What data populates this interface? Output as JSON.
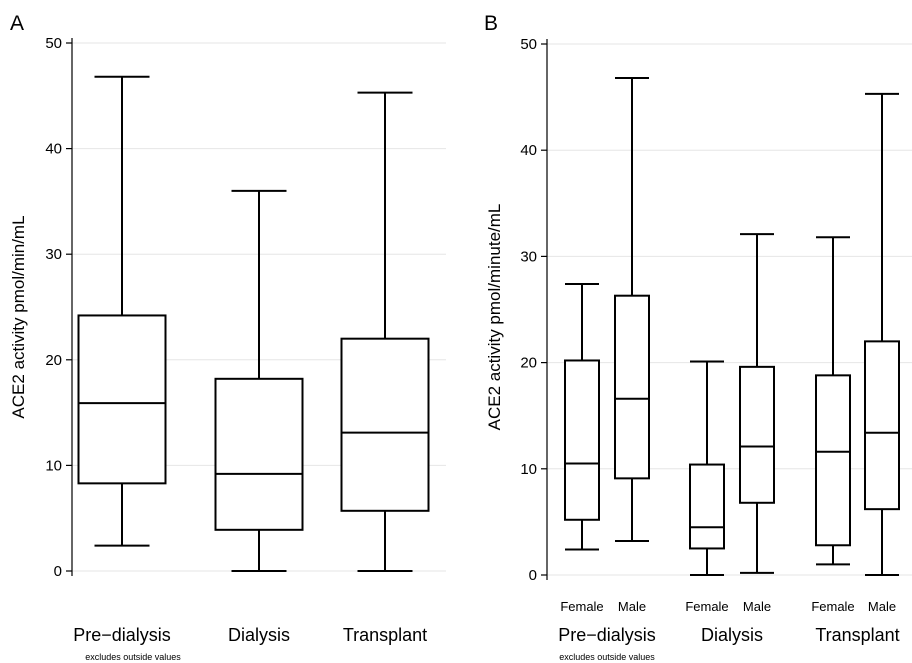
{
  "chart_data": [
    {
      "type": "box",
      "panel_label": "A",
      "ylabel": "ACE2 activity pmol/min/mL",
      "ylim": [
        0,
        50
      ],
      "yticks": [
        0,
        10,
        20,
        30,
        40,
        50
      ],
      "grid": true,
      "note": "excludes outside values",
      "groups": [
        {
          "label": "Pre−dialysis",
          "boxes": [
            {
              "min": 2.4,
              "q1": 8.3,
              "median": 15.9,
              "q3": 24.2,
              "max": 46.8
            }
          ]
        },
        {
          "label": "Dialysis",
          "boxes": [
            {
              "min": 0,
              "q1": 3.9,
              "median": 9.2,
              "q3": 18.2,
              "max": 36.0
            }
          ]
        },
        {
          "label": "Transplant",
          "boxes": [
            {
              "min": 0,
              "q1": 5.7,
              "median": 13.1,
              "q3": 22.0,
              "max": 45.3
            }
          ]
        }
      ]
    },
    {
      "type": "box",
      "panel_label": "B",
      "ylabel": "ACE2 activity pmol/minute/mL",
      "ylim": [
        0,
        50
      ],
      "yticks": [
        0,
        10,
        20,
        30,
        40,
        50
      ],
      "grid": true,
      "note": "excludes outside values",
      "groups": [
        {
          "label": "Pre−dialysis",
          "boxes": [
            {
              "sub": "Female",
              "min": 2.4,
              "q1": 5.2,
              "median": 10.5,
              "q3": 20.2,
              "max": 27.4
            },
            {
              "sub": "Male",
              "min": 3.2,
              "q1": 9.1,
              "median": 16.6,
              "q3": 26.3,
              "max": 46.8
            }
          ]
        },
        {
          "label": "Dialysis",
          "boxes": [
            {
              "sub": "Female",
              "min": 0,
              "q1": 2.5,
              "median": 4.5,
              "q3": 10.4,
              "max": 20.1
            },
            {
              "sub": "Male",
              "min": 0.2,
              "q1": 6.8,
              "median": 12.1,
              "q3": 19.6,
              "max": 32.1
            }
          ]
        },
        {
          "label": "Transplant",
          "boxes": [
            {
              "sub": "Female",
              "min": 1.0,
              "q1": 2.8,
              "median": 11.6,
              "q3": 18.8,
              "max": 31.8
            },
            {
              "sub": "Male",
              "min": 0,
              "q1": 6.2,
              "median": 13.4,
              "q3": 22.0,
              "max": 45.3
            }
          ]
        }
      ]
    }
  ]
}
